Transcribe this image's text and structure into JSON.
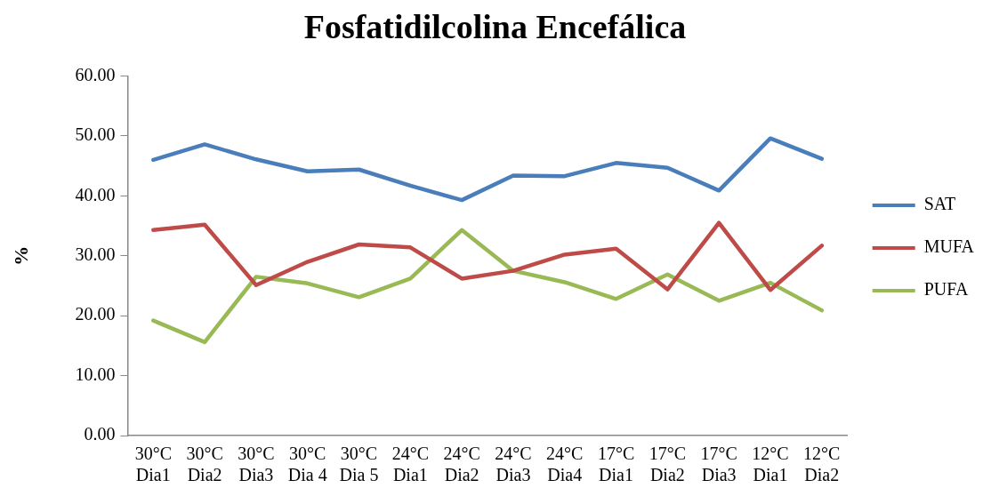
{
  "chart_data": {
    "type": "line",
    "title": "Fosfatidilcolina Encefálica",
    "ylabel": "%",
    "categories": [
      "30°C Dia1",
      "30°C Dia2",
      "30°C Dia3",
      "30°C Dia 4",
      "30°C Dia 5",
      "24°C Dia1",
      "24°C Dia2",
      "24°C Dia3",
      "24°C Dia4",
      "17°C Dia1",
      "17°C Dia2",
      "17°C Dia3",
      "12°C Dia1",
      "12°C Dia2"
    ],
    "series": [
      {
        "name": "SAT",
        "color": "#4a7ebb",
        "values": [
          46.0,
          48.6,
          46.1,
          44.1,
          44.4,
          41.7,
          39.3,
          43.4,
          43.3,
          45.5,
          44.7,
          40.9,
          49.6,
          46.2
        ]
      },
      {
        "name": "MUFA",
        "color": "#be4b48",
        "values": [
          34.3,
          35.2,
          25.1,
          29.0,
          31.9,
          31.4,
          26.2,
          27.5,
          30.2,
          31.2,
          24.4,
          35.5,
          24.3,
          31.7
        ]
      },
      {
        "name": "PUFA",
        "color": "#98b954",
        "values": [
          19.2,
          15.6,
          26.5,
          25.4,
          23.1,
          26.2,
          34.3,
          27.5,
          25.6,
          22.8,
          26.9,
          22.5,
          25.5,
          20.9
        ]
      }
    ],
    "ylim": [
      0,
      60
    ],
    "yticks": [
      {
        "value": 0,
        "label": "0.00"
      },
      {
        "value": 10,
        "label": "10.00"
      },
      {
        "value": 20,
        "label": "20.00"
      },
      {
        "value": 30,
        "label": "30.00"
      },
      {
        "value": 40,
        "label": "40.00"
      },
      {
        "value": 50,
        "label": "50.00"
      },
      {
        "value": 60,
        "label": "60.00"
      }
    ],
    "grid": false,
    "legend": "right",
    "marker": "none",
    "line_style": "solid"
  }
}
